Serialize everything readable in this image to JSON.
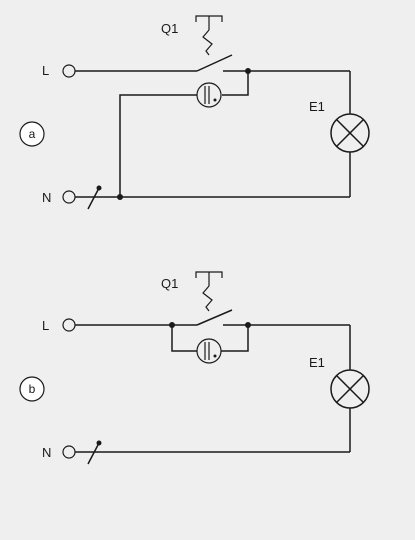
{
  "diagram_a": {
    "tag": "a",
    "line_label": "L",
    "neutral_label": "N",
    "switch_label": "Q1",
    "lamp_label": "E1"
  },
  "diagram_b": {
    "tag": "b",
    "line_label": "L",
    "neutral_label": "N",
    "switch_label": "Q1",
    "lamp_label": "E1"
  },
  "colors": {
    "background": "#efefef",
    "stroke": "#1a1a1a",
    "tag_fill": "#ffffff"
  }
}
